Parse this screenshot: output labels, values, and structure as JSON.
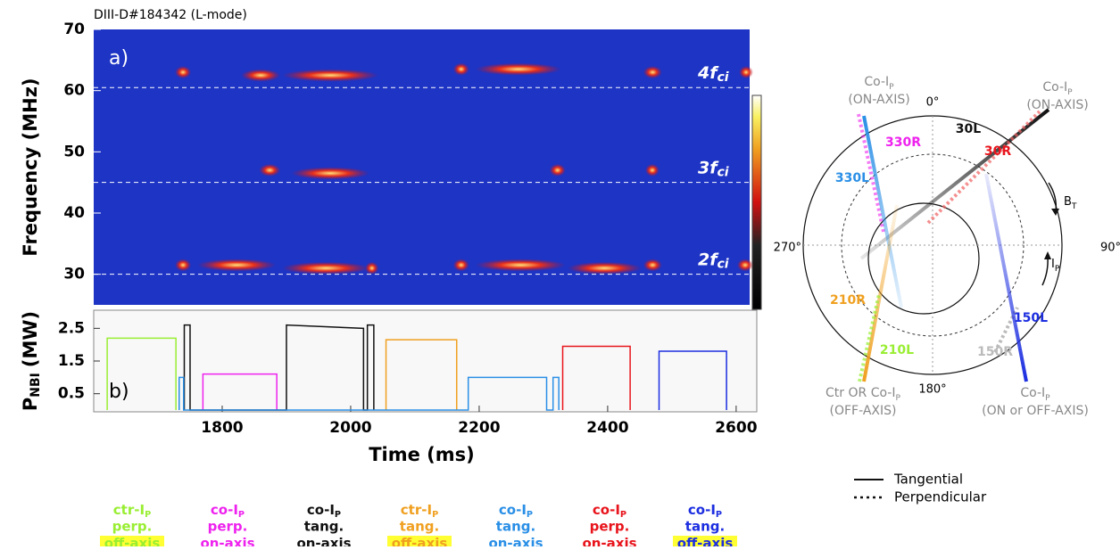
{
  "title": "DIII-D#184342 (L-mode)",
  "chart_data": [
    {
      "type": "spectrogram",
      "panel_label": "a)",
      "y_label": "Frequency (MHz)",
      "xlim": [
        1600,
        2621
      ],
      "ylim": [
        25,
        70
      ],
      "yticks": [
        30,
        40,
        50,
        60,
        70
      ],
      "harmonics": [
        {
          "text": "4f",
          "sub": "ci",
          "value": 60.5
        },
        {
          "text": "3f",
          "sub": "ci",
          "value": 45
        },
        {
          "text": "2f",
          "sub": "ci",
          "value": 30
        }
      ],
      "bursts": [
        {
          "x": [
            1732,
            1746
          ],
          "y": 31.5
        },
        {
          "x": [
            1767,
            1878
          ],
          "y": 31.5
        },
        {
          "x": [
            1899,
            2024
          ],
          "y": 31
        },
        {
          "x": [
            2028,
            2038
          ],
          "y": 31
        },
        {
          "x": [
            2165,
            2179
          ],
          "y": 31.5
        },
        {
          "x": [
            2200,
            2329
          ],
          "y": 31.5
        },
        {
          "x": [
            2343,
            2447
          ],
          "y": 31
        },
        {
          "x": [
            2461,
            2479
          ],
          "y": 31.5
        },
        {
          "x": [
            2607,
            2621
          ],
          "y": 31.5
        },
        {
          "x": [
            1863,
            1885
          ],
          "y": 47
        },
        {
          "x": [
            1913,
            2024
          ],
          "y": 46.5
        },
        {
          "x": [
            2315,
            2329
          ],
          "y": 47
        },
        {
          "x": [
            2464,
            2475
          ],
          "y": 47
        },
        {
          "x": [
            1732,
            1746
          ],
          "y": 63
        },
        {
          "x": [
            1835,
            1885
          ],
          "y": 62.5
        },
        {
          "x": [
            1899,
            2038
          ],
          "y": 62.5
        },
        {
          "x": [
            2165,
            2179
          ],
          "y": 63.5
        },
        {
          "x": [
            2200,
            2322
          ],
          "y": 63.5
        },
        {
          "x": [
            2461,
            2479
          ],
          "y": 63
        },
        {
          "x": [
            2610,
            2621
          ],
          "y": 63
        }
      ]
    },
    {
      "type": "line",
      "panel_label": "b)",
      "y_label": {
        "text": "P",
        "sub": "NBI",
        "unit": "(MW)"
      },
      "x_label": "Time (ms)",
      "xlim": [
        1600,
        2621
      ],
      "ylim": [
        0,
        3
      ],
      "yticks": [
        0.5,
        1.5,
        2.5
      ],
      "xticks": [
        1800,
        2000,
        2200,
        2400,
        2600
      ],
      "series": [
        {
          "color": "#99ee33",
          "x": [
            1621,
            1621,
            1728,
            1728
          ],
          "values": [
            0,
            2.2,
            2.2,
            0
          ]
        },
        {
          "color": "#ee22ee",
          "x": [
            1770,
            1770,
            1885,
            1885
          ],
          "values": [
            0,
            1.1,
            1.1,
            0
          ]
        },
        {
          "color": "#111111",
          "x": [
            1741,
            1741,
            1750,
            1750,
            1900,
            1900,
            2020,
            2020,
            2026,
            2026,
            2036,
            2036
          ],
          "values": [
            0,
            2.6,
            2.6,
            0,
            0,
            2.6,
            2.5,
            0,
            0,
            2.6,
            2.6,
            0
          ]
        },
        {
          "color": "#f0a020",
          "x": [
            2055,
            2055,
            2165,
            2165
          ],
          "values": [
            0,
            2.15,
            2.15,
            0
          ]
        },
        {
          "color": "#2a8fe6",
          "x": [
            1733,
            1733,
            1740,
            1740,
            2183,
            2183,
            2305,
            2305,
            2315,
            2315,
            2324,
            2324
          ],
          "values": [
            0,
            1,
            1,
            0,
            0,
            1,
            1,
            0,
            0,
            1,
            1,
            0
          ]
        },
        {
          "color": "#e8141c",
          "x": [
            2330,
            2330,
            2435,
            2435
          ],
          "values": [
            0,
            1.95,
            1.95,
            0
          ]
        },
        {
          "color": "#1c2ee0",
          "x": [
            2480,
            2480,
            2585,
            2585
          ],
          "values": [
            0,
            1.8,
            1.8,
            0
          ]
        }
      ]
    }
  ],
  "beam_labels": [
    {
      "color": "#99ee33",
      "lines": [
        {
          "text": "ctr-I",
          "sub": "P"
        },
        "perp.",
        "off-axis"
      ],
      "highlight": true
    },
    {
      "color": "#ee22ee",
      "lines": [
        {
          "text": "co-I",
          "sub": "P"
        },
        "perp.",
        "on-axis"
      ],
      "highlight": false
    },
    {
      "color": "#111111",
      "lines": [
        {
          "text": "co-I",
          "sub": "P"
        },
        "tang.",
        "on-axis"
      ],
      "highlight": false
    },
    {
      "color": "#f0a020",
      "lines": [
        {
          "text": "ctr-I",
          "sub": "P"
        },
        "tang.",
        "off-axis"
      ],
      "highlight": true
    },
    {
      "color": "#2a8fe6",
      "lines": [
        {
          "text": "co-I",
          "sub": "P"
        },
        "tang.",
        "on-axis"
      ],
      "highlight": false
    },
    {
      "color": "#e8141c",
      "lines": [
        {
          "text": "co-I",
          "sub": "P"
        },
        "perp.",
        "on-axis"
      ],
      "highlight": false
    },
    {
      "color": "#1c2ee0",
      "lines": [
        {
          "text": "co-I",
          "sub": "P"
        },
        "tang.",
        "off-axis"
      ],
      "highlight": true
    }
  ],
  "diagram": {
    "top_left": {
      "text": "Co-I",
      "sub": "P",
      "note": "(ON-AXIS)"
    },
    "top_right": {
      "text": "Co-I",
      "sub": "P",
      "note": "(ON-AXIS)"
    },
    "bottom_left": {
      "text": "Ctr OR Co-I",
      "sub": "P",
      "note": "(OFF-AXIS)"
    },
    "bottom_right": {
      "text": "Co-I",
      "sub": "P",
      "note": "(ON or OFF-AXIS)"
    },
    "angles": [
      "0°",
      "90°",
      "180°",
      "270°"
    ],
    "field": {
      "text": "B",
      "sub": "T"
    },
    "current": {
      "text": "I",
      "sub": "P"
    },
    "beams": [
      "30L",
      "30R",
      "330R",
      "330L",
      "210R",
      "210L",
      "150R",
      "150L"
    ],
    "legend": [
      "Tangential",
      "Perpendicular"
    ]
  }
}
